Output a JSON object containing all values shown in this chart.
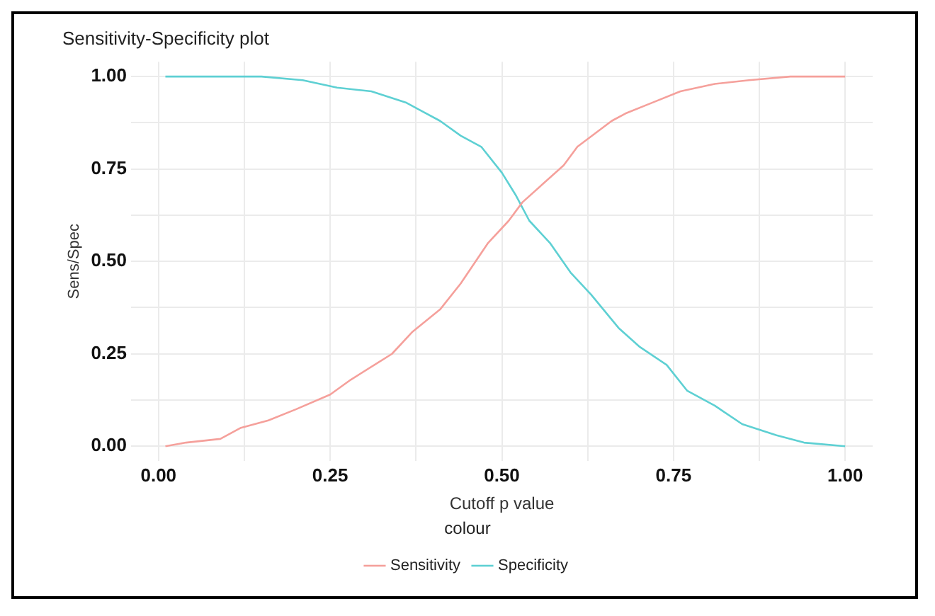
{
  "chart_data": {
    "type": "line",
    "title": "Sensitivity-Specificity plot",
    "xlabel": "Cutoff p value",
    "ylabel": "Sens/Spec",
    "legend_title": "colour",
    "series": [
      {
        "name": "Sensitivity",
        "color": "#f5a09b",
        "x": [
          0.01,
          0.04,
          0.09,
          0.12,
          0.16,
          0.2,
          0.25,
          0.28,
          0.34,
          0.37,
          0.41,
          0.44,
          0.48,
          0.51,
          0.53,
          0.56,
          0.59,
          0.61,
          0.66,
          0.68,
          0.72,
          0.76,
          0.81,
          0.86,
          0.92,
          1.0
        ],
        "values": [
          0.0,
          0.01,
          0.02,
          0.05,
          0.07,
          0.1,
          0.14,
          0.18,
          0.25,
          0.31,
          0.37,
          0.44,
          0.55,
          0.61,
          0.66,
          0.71,
          0.76,
          0.81,
          0.88,
          0.9,
          0.93,
          0.96,
          0.98,
          0.99,
          1.0,
          1.0
        ]
      },
      {
        "name": "Specificity",
        "color": "#5ed0d3",
        "x": [
          0.01,
          0.09,
          0.15,
          0.21,
          0.26,
          0.31,
          0.36,
          0.38,
          0.41,
          0.44,
          0.47,
          0.5,
          0.52,
          0.54,
          0.57,
          0.6,
          0.63,
          0.67,
          0.7,
          0.74,
          0.77,
          0.81,
          0.85,
          0.9,
          0.94,
          1.0
        ],
        "values": [
          1.0,
          1.0,
          1.0,
          0.99,
          0.97,
          0.96,
          0.93,
          0.91,
          0.88,
          0.84,
          0.81,
          0.74,
          0.68,
          0.61,
          0.55,
          0.47,
          0.41,
          0.32,
          0.27,
          0.22,
          0.15,
          0.11,
          0.06,
          0.03,
          0.01,
          0.0
        ]
      }
    ],
    "xlim": [
      -0.04,
      1.04
    ],
    "xticks": [
      {
        "value": 0,
        "label": "0.00"
      },
      {
        "value": 0.125,
        "label": null
      },
      {
        "value": 0.25,
        "label": "0.25"
      },
      {
        "value": 0.375,
        "label": null
      },
      {
        "value": 0.5,
        "label": "0.50"
      },
      {
        "value": 0.625,
        "label": null
      },
      {
        "value": 0.75,
        "label": "0.75"
      },
      {
        "value": 0.875,
        "label": null
      },
      {
        "value": 1,
        "label": "1.00"
      }
    ],
    "ylim": [
      -0.04,
      1.04
    ],
    "yticks": [
      {
        "value": 0,
        "label": "0.00"
      },
      {
        "value": 0.125,
        "label": null
      },
      {
        "value": 0.25,
        "label": "0.25"
      },
      {
        "value": 0.375,
        "label": null
      },
      {
        "value": 0.5,
        "label": "0.50"
      },
      {
        "value": 0.625,
        "label": null
      },
      {
        "value": 0.75,
        "label": "0.75"
      },
      {
        "value": 0.875,
        "label": null
      },
      {
        "value": 1,
        "label": "1.00"
      }
    ],
    "grid": true,
    "legend": "bottom",
    "marker": "none",
    "line_style": "solid"
  }
}
